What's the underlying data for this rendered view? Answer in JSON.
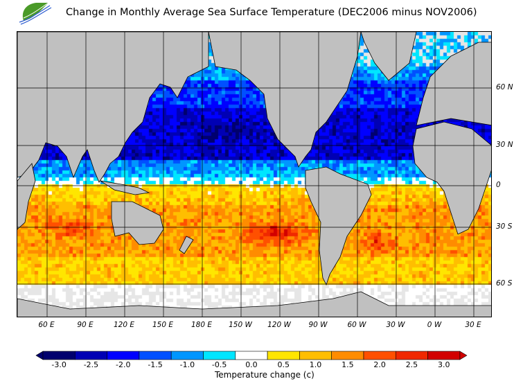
{
  "title": "Change in Monthly Average Sea Surface Temperature (DEC2006 minus NOV2006)",
  "logo": {
    "text": "logo-leaf-icon"
  },
  "map": {
    "lon_labels": [
      "60 E",
      "90 E",
      "120 E",
      "150 E",
      "180 E",
      "150 W",
      "120 W",
      "90 W",
      "60 W",
      "30 W",
      "0 W",
      "30 E"
    ],
    "lat_labels": [
      "60 N",
      "30 N",
      "0",
      "30 S",
      "60 S"
    ],
    "land_color": "#c0c0c0",
    "no_data_color": "#e6e6e6"
  },
  "colorbar": {
    "title": "Temperature change  (c)",
    "tick_labels": [
      "-3.0",
      "-2.5",
      "-2.0",
      "-1.5",
      "-1.0",
      "-0.5",
      "0.0",
      "0.5",
      "1.0",
      "1.5",
      "2.0",
      "2.5",
      "3.0"
    ],
    "colors": [
      "#00006e",
      "#0000b4",
      "#0000ff",
      "#0050ff",
      "#0096ff",
      "#00e6ff",
      "#ffffff",
      "#ffe600",
      "#ffbe00",
      "#ff8c00",
      "#ff5000",
      "#f02800",
      "#d20000"
    ]
  }
}
